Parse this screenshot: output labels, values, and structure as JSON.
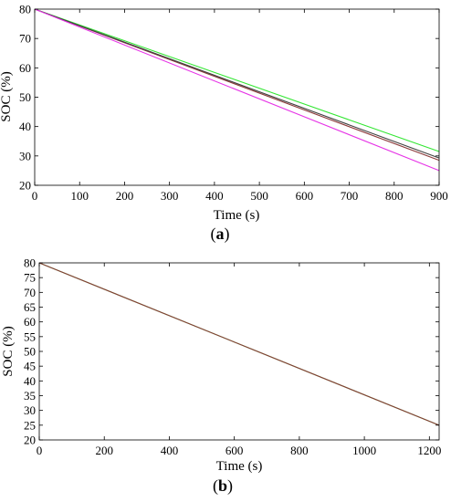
{
  "chart_data": [
    {
      "type": "line",
      "panel_label": "(a)",
      "xlabel": "Time (s)",
      "ylabel": "SOC (%)",
      "xlim": [
        0,
        900
      ],
      "ylim": [
        20,
        80
      ],
      "xticks": [
        0,
        100,
        200,
        300,
        400,
        500,
        600,
        700,
        800,
        900
      ],
      "yticks": [
        20,
        30,
        40,
        50,
        60,
        70,
        80
      ],
      "grid": false,
      "legend": "none",
      "series": [
        {
          "color": "#33e633",
          "x": [
            0,
            900
          ],
          "y": [
            80,
            31.5
          ]
        },
        {
          "color": "#8b3a3a",
          "x": [
            0,
            900
          ],
          "y": [
            80,
            28.5
          ]
        },
        {
          "color": "#404040",
          "x": [
            0,
            900
          ],
          "y": [
            80,
            29.3
          ]
        },
        {
          "color": "#e633e6",
          "x": [
            0,
            900
          ],
          "y": [
            80,
            25
          ]
        }
      ]
    },
    {
      "type": "line",
      "panel_label": "(b)",
      "xlabel": "Time (s)",
      "ylabel": "SOC (%)",
      "xlim": [
        0,
        1230
      ],
      "ylim": [
        20,
        80
      ],
      "xticks": [
        0,
        200,
        400,
        600,
        800,
        1000,
        1200
      ],
      "yticks": [
        20,
        25,
        30,
        35,
        40,
        45,
        50,
        55,
        60,
        65,
        70,
        75,
        80
      ],
      "grid": false,
      "legend": "none",
      "series": [
        {
          "color": "#33e633",
          "x": [
            0,
            1230
          ],
          "y": [
            80,
            25
          ]
        },
        {
          "color": "#8b3a3a",
          "x": [
            0,
            1230
          ],
          "y": [
            80,
            25
          ]
        }
      ]
    }
  ]
}
